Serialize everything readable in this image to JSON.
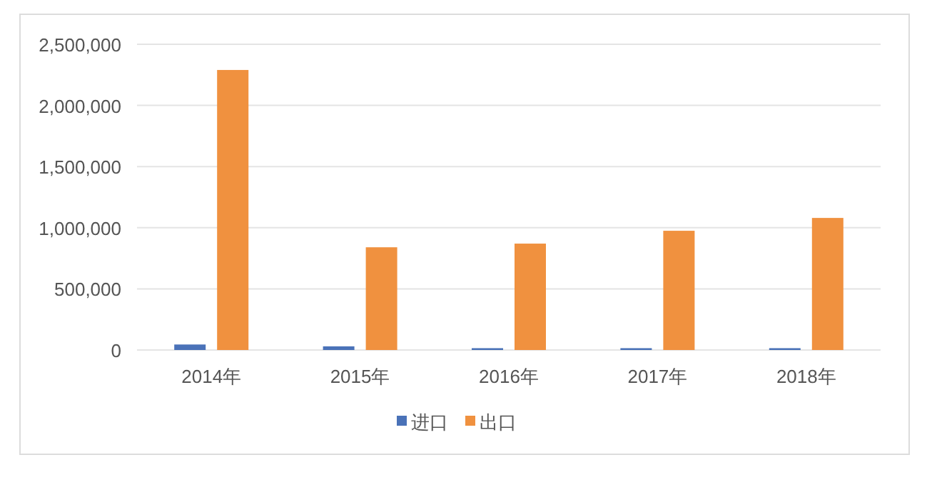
{
  "chart_data": {
    "type": "bar",
    "categories": [
      "2014年",
      "2015年",
      "2016年",
      "2017年",
      "2018年"
    ],
    "series": [
      {
        "name": "进口",
        "color": "#4a72b8",
        "values": [
          45000,
          30000,
          15000,
          15000,
          15000
        ]
      },
      {
        "name": "出口",
        "color": "#f0913f",
        "values": [
          2290000,
          840000,
          870000,
          975000,
          1080000
        ]
      }
    ],
    "ylim": [
      0,
      2500000
    ],
    "yticks": [
      0,
      {
        "value": 500000,
        "label": "500,000"
      },
      {
        "value": 1000000,
        "label": "1,000,000"
      },
      {
        "value": 1500000,
        "label": "1,500,000"
      },
      {
        "value": 2000000,
        "label": "2,000,000"
      },
      {
        "value": 2500000,
        "label": "2,500,000"
      }
    ],
    "grid": "y",
    "legend": "bottom"
  }
}
